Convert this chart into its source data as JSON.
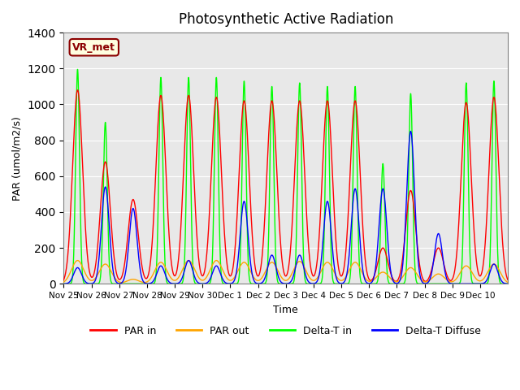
{
  "title": "Photosynthetic Active Radiation",
  "ylabel": "PAR (umol/m2/s)",
  "xlabel": "Time",
  "annotation": "VR_met",
  "ylim": [
    0,
    1400
  ],
  "plot_background": "#e8e8e8",
  "legend_entries": [
    "PAR in",
    "PAR out",
    "Delta-T in",
    "Delta-T Diffuse"
  ],
  "x_tick_labels": [
    "Nov 25",
    "Nov 26",
    "Nov 27",
    "Nov 28",
    "Nov 29",
    "Nov 30",
    "Dec 1",
    "Dec 2",
    "Dec 3",
    "Dec 4",
    "Dec 5",
    "Dec 6",
    "Dec 7",
    "Dec 8",
    "Dec 9",
    "Dec 10"
  ],
  "num_days": 16,
  "day_peaks_PAR_in": [
    1080,
    680,
    470,
    1050,
    1050,
    1040,
    1020,
    1020,
    1020,
    1020,
    1020,
    200,
    520,
    200,
    1010,
    1040
  ],
  "day_peaks_PAR_out": [
    130,
    110,
    25,
    120,
    130,
    130,
    120,
    120,
    125,
    120,
    120,
    65,
    90,
    55,
    100,
    110
  ],
  "day_peaks_DeltaT_in": [
    1195,
    900,
    0,
    1150,
    1150,
    1150,
    1130,
    1100,
    1120,
    1100,
    1100,
    670,
    1060,
    0,
    1120,
    1130
  ],
  "day_peaks_DeltaT_diff": [
    90,
    540,
    420,
    100,
    130,
    100,
    460,
    160,
    160,
    460,
    530,
    530,
    850,
    280,
    0,
    110
  ]
}
